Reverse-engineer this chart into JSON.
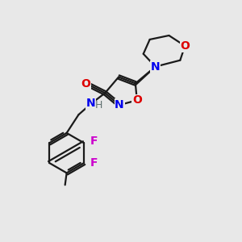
{
  "background_color": "#e8e8e8",
  "bond_color": "#1a1a1a",
  "atom_colors": {
    "N": "#0000ee",
    "O": "#dd0000",
    "F": "#cc00cc",
    "H": "#607070",
    "C": "#1a1a1a"
  },
  "figsize": [
    3.0,
    3.0
  ],
  "dpi": 100,
  "lw": 1.6,
  "fontsize": 10
}
